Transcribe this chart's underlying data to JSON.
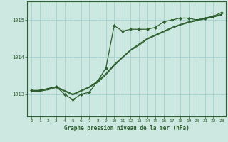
{
  "background_color": "#cce8e0",
  "grid_color": "#99cccc",
  "line_color": "#2d5e2d",
  "marker_color": "#2d5e2d",
  "xlabel": "Graphe pression niveau de la mer (hPa)",
  "xlim": [
    -0.5,
    23.5
  ],
  "ylim": [
    1012.4,
    1015.5
  ],
  "yticks": [
    1013,
    1014,
    1015
  ],
  "xticks": [
    0,
    1,
    2,
    3,
    4,
    5,
    6,
    7,
    8,
    9,
    10,
    11,
    12,
    13,
    14,
    15,
    16,
    17,
    18,
    19,
    20,
    21,
    22,
    23
  ],
  "series1_smooth": {
    "x": [
      0,
      1,
      2,
      3,
      4,
      5,
      6,
      7,
      8,
      9,
      10,
      11,
      12,
      13,
      14,
      15,
      16,
      17,
      18,
      19,
      20,
      21,
      22,
      23
    ],
    "y": [
      1013.1,
      1013.1,
      1013.15,
      1013.2,
      1013.1,
      1013.0,
      1013.1,
      1013.2,
      1013.35,
      1013.55,
      1013.8,
      1014.0,
      1014.2,
      1014.35,
      1014.5,
      1014.6,
      1014.7,
      1014.8,
      1014.88,
      1014.95,
      1015.0,
      1015.05,
      1015.1,
      1015.15
    ]
  },
  "series2_smooth": {
    "x": [
      0,
      1,
      2,
      3,
      4,
      5,
      6,
      7,
      8,
      9,
      10,
      11,
      12,
      13,
      14,
      15,
      16,
      17,
      18,
      19,
      20,
      21,
      22,
      23
    ],
    "y": [
      1013.08,
      1013.08,
      1013.12,
      1013.18,
      1013.08,
      1012.98,
      1013.08,
      1013.18,
      1013.32,
      1013.52,
      1013.77,
      1013.98,
      1014.18,
      1014.32,
      1014.48,
      1014.58,
      1014.68,
      1014.78,
      1014.86,
      1014.93,
      1014.98,
      1015.03,
      1015.08,
      1015.13
    ]
  },
  "series3_marked": {
    "x": [
      0,
      1,
      2,
      3,
      4,
      5,
      6,
      7,
      8,
      9,
      10,
      11,
      12,
      13,
      14,
      15,
      16,
      17,
      18,
      19,
      20,
      21,
      22,
      23
    ],
    "y": [
      1013.1,
      1013.1,
      1013.15,
      1013.2,
      1013.0,
      1012.85,
      1013.0,
      1013.05,
      1013.35,
      1013.7,
      1014.85,
      1014.7,
      1014.75,
      1014.75,
      1014.75,
      1014.8,
      1014.95,
      1015.0,
      1015.05,
      1015.05,
      1015.0,
      1015.05,
      1015.1,
      1015.2
    ]
  }
}
